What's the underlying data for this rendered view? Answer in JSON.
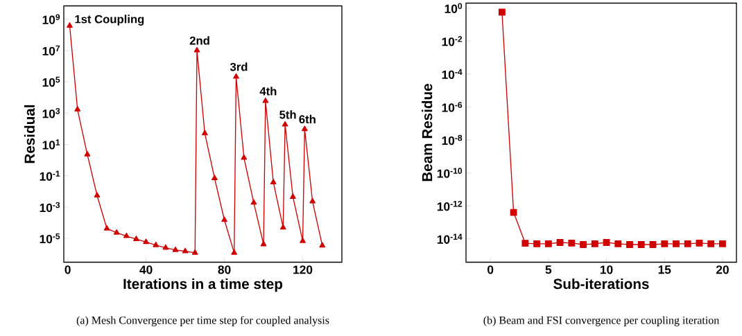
{
  "chart_data": [
    {
      "type": "line",
      "xlabel": "Iterations in a time step",
      "ylabel": "Residual",
      "log": "y",
      "marker": "triangle",
      "line_style": "solid",
      "xlim": [
        -2,
        140
      ],
      "ylim": [
        3e-07,
        7000000000.0
      ],
      "xticks": [
        0,
        40,
        80,
        120
      ],
      "yticks": [
        {
          "value": 1e-05,
          "label": "10$^{-5}$"
        },
        {
          "value": 0.001,
          "label": "10$^{-3}$"
        },
        {
          "value": 0.1,
          "label": "10$^{-1}$"
        },
        {
          "value": 10,
          "label": "10$^{1}$"
        },
        {
          "value": 1000,
          "label": "10$^{3}$"
        },
        {
          "value": 100000.0,
          "label": "10$^{5}$"
        },
        {
          "value": 10000000.0,
          "label": "10$^{7}$"
        },
        {
          "value": 1000000000.0,
          "label": "10$^{9}$"
        }
      ],
      "series": [
        {
          "color": "#d00000",
          "x": [
            1,
            5,
            10,
            15,
            20,
            25,
            30,
            35,
            40,
            45,
            50,
            55,
            60,
            65,
            66,
            70,
            75,
            80,
            85,
            86,
            90,
            95,
            100,
            101,
            105,
            110,
            111,
            115,
            120,
            121,
            125,
            130
          ],
          "values": [
            380000000.0,
            1700.0,
            2.3,
            0.0054,
            4.2e-05,
            2.3e-05,
            1.4e-05,
            8.9e-06,
            5.8e-06,
            3.7e-06,
            2.5e-06,
            1.8e-06,
            1.5e-06,
            1.2e-06,
            10000000.0,
            51,
            0.069,
            0.00015,
            1.2e-06,
            210000.0,
            1.4,
            0.0019,
            4.2e-06,
            5900.0,
            0.038,
            4.9e-05,
            186,
            0.0045,
            6.8e-06,
            95,
            0.0023,
            3.5e-06
          ]
        }
      ],
      "annotations": [
        {
          "text": "1st Coupling",
          "x": 1,
          "y": 380000000.0
        },
        {
          "text": "2nd",
          "x": 66,
          "y": 10000000.0
        },
        {
          "text": "3rd",
          "x": 86,
          "y": 210000.0
        },
        {
          "text": "4th",
          "x": 101,
          "y": 5900.0
        },
        {
          "text": "5th",
          "x": 111,
          "y": 186
        },
        {
          "text": "6th",
          "x": 121,
          "y": 95
        },
        "(a)  Mesh Convergence per time step for coupled analysis"
      ]
    },
    {
      "type": "line",
      "xlabel": "Sub-iterations",
      "ylabel": "Beam Residue",
      "log": "y",
      "marker": "square",
      "line_style": "solid",
      "xlim": [
        -2.1,
        21.2
      ],
      "ylim": [
        3.8e-16,
        2
      ],
      "xticks": [
        0,
        5,
        10,
        15,
        20
      ],
      "yticks": [
        {
          "value": 1e-14,
          "label": "10$^{-14}$"
        },
        {
          "value": 1e-12,
          "label": "10$^{-12}$"
        },
        {
          "value": 1e-10,
          "label": "10$^{-10}$"
        },
        {
          "value": 1e-08,
          "label": "10$^{-8}$"
        },
        {
          "value": 1e-06,
          "label": "10$^{-6}$"
        },
        {
          "value": 0.0001,
          "label": "10$^{-4}$"
        },
        {
          "value": 0.01,
          "label": "10$^{-2}$"
        },
        {
          "value": 1,
          "label": "10$^{0}$"
        }
      ],
      "series": [
        {
          "color": "#d00000",
          "x": [
            1,
            2,
            3,
            4,
            5,
            6,
            7,
            8,
            9,
            10,
            11,
            12,
            13,
            14,
            15,
            16,
            17,
            18,
            19,
            20
          ],
          "values": [
            0.57,
            4e-13,
            5.4e-15,
            5e-15,
            5e-15,
            6e-15,
            5.5e-15,
            4.5e-15,
            5e-15,
            6e-15,
            5e-15,
            4.5e-15,
            4.5e-15,
            4.5e-15,
            5e-15,
            5e-15,
            5e-15,
            5.5e-15,
            5e-15,
            5e-15
          ]
        }
      ],
      "annotations": [
        "(b)  Beam and FSI convergence per coupling iteration"
      ]
    }
  ]
}
